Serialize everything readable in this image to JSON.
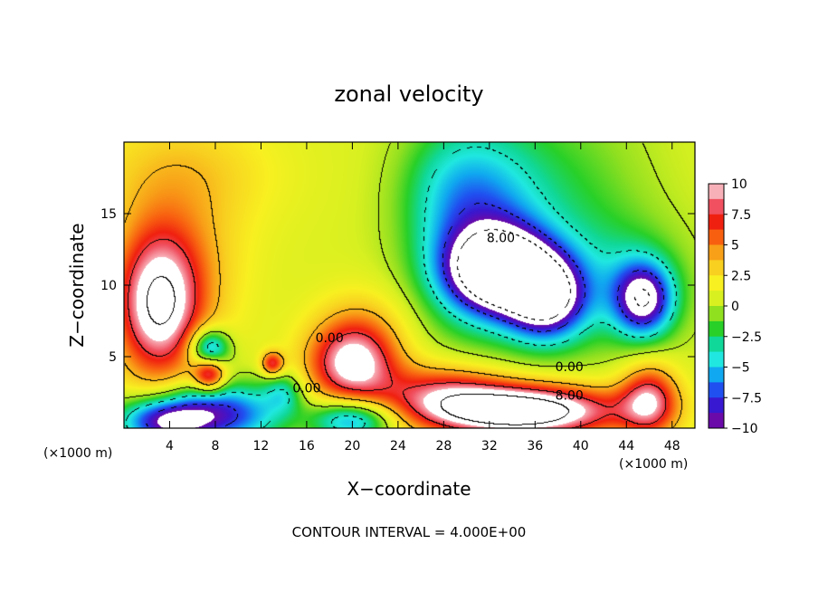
{
  "chart_data": {
    "type": "heatmap",
    "title": "zonal velocity",
    "xlabel": "X−coordinate",
    "ylabel": "Z−coordinate",
    "x_unit_left": "(×1000 m)",
    "x_unit_right": "(×1000 m)",
    "footer": "CONTOUR INTERVAL = 4.000E+00",
    "xlim": [
      0,
      50
    ],
    "ylim": [
      0,
      20
    ],
    "x_ticks": [
      4,
      8,
      12,
      16,
      20,
      24,
      28,
      32,
      36,
      40,
      44,
      48
    ],
    "x_tick_labels": [
      "4",
      "8",
      "12",
      "16",
      "20",
      "24",
      "28",
      "32",
      "36",
      "40",
      "44",
      "48"
    ],
    "y_ticks": [
      5,
      10,
      15
    ],
    "y_tick_labels": [
      "5",
      "10",
      "15"
    ],
    "colorbar": {
      "range": [
        -10,
        10
      ],
      "ticks": [
        10,
        7.5,
        5,
        2.5,
        0,
        -2.5,
        -5,
        -7.5,
        -10
      ],
      "tick_labels": [
        "10",
        "7.5",
        "5",
        "2.5",
        "0",
        "−2.5",
        "−5",
        "−7.5",
        "−10"
      ],
      "colors": [
        "#6a0aa8",
        "#3818d0",
        "#2050f0",
        "#10a8f0",
        "#20e8e0",
        "#10d898",
        "#28d028",
        "#90e020",
        "#d8f020",
        "#f8f020",
        "#f8d020",
        "#f8a018",
        "#f86010",
        "#f02010",
        "#f05060",
        "#f8b0b8"
      ]
    },
    "contour_labels": [
      {
        "text": "8.00",
        "x": 33,
        "z": 13
      },
      {
        "text": "0.00",
        "x": 18,
        "z": 6
      },
      {
        "text": "0.00",
        "x": 16,
        "z": 2.5
      },
      {
        "text": "0.00",
        "x": 39,
        "z": 4
      },
      {
        "text": "8.00",
        "x": 39,
        "z": 2
      }
    ],
    "features": [
      {
        "x": 3,
        "z": 8.5,
        "sx": 2.6,
        "sz": 3.6,
        "v": 10
      },
      {
        "x": 5,
        "z": 11,
        "sx": 4,
        "sz": 4,
        "v": 3
      },
      {
        "x": 7.5,
        "z": 3.8,
        "sx": 1.0,
        "sz": 0.9,
        "v": 9
      },
      {
        "x": 7.5,
        "z": 5.5,
        "sx": 1.2,
        "sz": 1.0,
        "v": -9
      },
      {
        "x": 13,
        "z": 4.5,
        "sx": 0.7,
        "sz": 0.6,
        "v": 7
      },
      {
        "x": 20,
        "z": 4.5,
        "sx": 2.8,
        "sz": 2.0,
        "v": 10
      },
      {
        "x": 21,
        "z": 7.5,
        "sx": 3,
        "sz": 2,
        "v": 2
      },
      {
        "x": 33,
        "z": 11,
        "sx": 3.2,
        "sz": 2.0,
        "v": -14
      },
      {
        "x": 37,
        "z": 9,
        "sx": 2.4,
        "sz": 2.0,
        "v": -11
      },
      {
        "x": 31,
        "z": 14,
        "sx": 4,
        "sz": 5,
        "v": -7
      },
      {
        "x": 39,
        "z": 15,
        "sx": 5,
        "sz": 6,
        "v": -2.5
      },
      {
        "x": 45.5,
        "z": 9,
        "sx": 1.8,
        "sz": 1.8,
        "v": -10
      },
      {
        "x": 44,
        "z": 10,
        "sx": 4,
        "sz": 3,
        "v": -3
      },
      {
        "x": 46,
        "z": 2,
        "sx": 1.8,
        "sz": 1.8,
        "v": 8
      },
      {
        "x": 35,
        "z": 1.2,
        "sx": 6,
        "sz": 1.3,
        "v": 14
      },
      {
        "x": 28,
        "z": 2.5,
        "sx": 4,
        "sz": 1.5,
        "v": 6
      },
      {
        "x": 4,
        "z": 0.5,
        "sx": 3,
        "sz": 1.2,
        "v": -12
      },
      {
        "x": 10,
        "z": 1,
        "sx": 3,
        "sz": 1.5,
        "v": -7
      },
      {
        "x": 20,
        "z": 0.6,
        "sx": 2.5,
        "sz": 1.0,
        "v": -8
      },
      {
        "x": 14,
        "z": 2.5,
        "sx": 1.2,
        "sz": 1.0,
        "v": -4
      },
      {
        "x": 7,
        "z": 2.2,
        "sx": 2,
        "sz": 1.0,
        "v": -2
      },
      {
        "x": 5,
        "z": 18,
        "sx": 6,
        "sz": 3,
        "v": 2.5
      },
      {
        "x": 28,
        "z": 17,
        "sx": 3,
        "sz": 3,
        "v": -1.5
      }
    ]
  }
}
